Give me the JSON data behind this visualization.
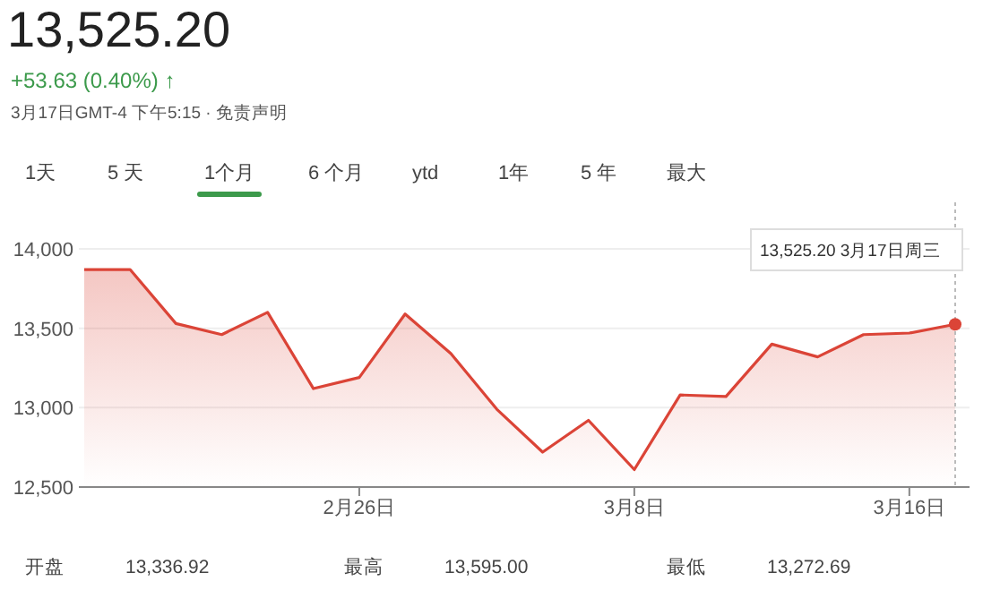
{
  "chart_data": {
    "type": "area",
    "title": "13,525.20",
    "subtitle": "+53.63 (0.40%) ↑",
    "categories": [
      null,
      null,
      null,
      null,
      null,
      null,
      "2月26日",
      null,
      null,
      null,
      null,
      null,
      "3月8日",
      null,
      null,
      null,
      null,
      null,
      "3月16日",
      null
    ],
    "series": [
      {
        "color": "#db4437",
        "values": [
          13870,
          13870,
          13530,
          13460,
          13600,
          13120,
          13190,
          13590,
          13340,
          12990,
          12720,
          12920,
          12610,
          13080,
          13070,
          13400,
          13320,
          13460,
          13470,
          13525.2
        ]
      }
    ],
    "ylim": [
      12500,
      14000
    ],
    "yticks": [
      {
        "value": 12500,
        "label": "12,500"
      },
      {
        "value": 13000,
        "label": "13,000"
      },
      {
        "value": 13500,
        "label": "13,500"
      },
      {
        "value": 14000,
        "label": "14,000"
      }
    ],
    "grid": "y",
    "annotations": [
      "3月17日GMT-4 下午5:15 · 免责声明",
      "1天",
      "5 天",
      "1个月",
      "6 个月",
      "ytd",
      "1年",
      "5 年",
      "最大",
      "13,525.20  3月17日周三",
      "开盘",
      "13,336.92",
      "最高",
      "13,595.00",
      "最低",
      "13,272.69"
    ]
  }
}
